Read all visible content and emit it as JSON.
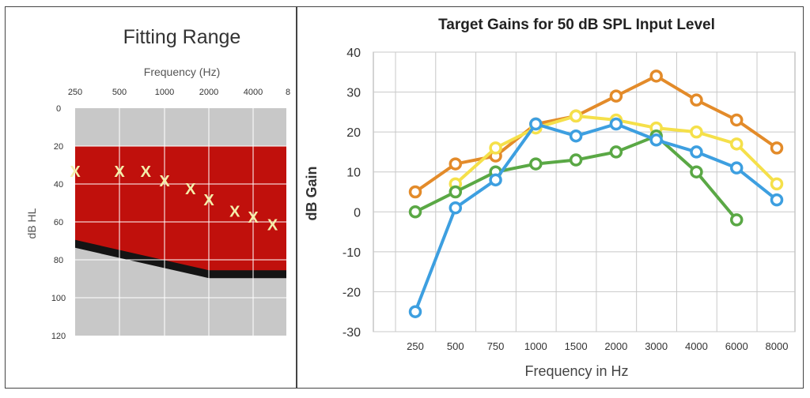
{
  "chart_data": [
    {
      "type": "scatter",
      "title": "Fitting Range",
      "xlabel": "Frequency (Hz)",
      "ylabel": "dB HL",
      "x_ticks": [
        "250",
        "500",
        "1000",
        "2000",
        "4000",
        "8"
      ],
      "y_ticks": [
        "0",
        "20",
        "40",
        "60",
        "80",
        "100",
        "120"
      ],
      "ylim": [
        0,
        120
      ],
      "y_inverted": true,
      "fitting_range_upper_db": 20,
      "fitting_range_lower_db": [
        {
          "freq": 250,
          "db": 72
        },
        {
          "freq": 2000,
          "db": 88
        },
        {
          "freq": 8000,
          "db": 88
        }
      ],
      "marker": "X",
      "points": [
        {
          "freq": 250,
          "db": 33
        },
        {
          "freq": 500,
          "db": 33
        },
        {
          "freq": 750,
          "db": 33
        },
        {
          "freq": 1000,
          "db": 38
        },
        {
          "freq": 1500,
          "db": 42
        },
        {
          "freq": 2000,
          "db": 48
        },
        {
          "freq": 3000,
          "db": 54
        },
        {
          "freq": 4000,
          "db": 57
        },
        {
          "freq": 6000,
          "db": 61
        }
      ],
      "colors": {
        "range": "#c0100c",
        "background": "#c8c8c8",
        "marker": "#f4eeaa",
        "curve": "#141414"
      }
    },
    {
      "type": "line",
      "title": "Target Gains for 50 dB SPL Input Level",
      "xlabel": "Frequency in Hz",
      "ylabel": "dB Gain",
      "categories": [
        "250",
        "500",
        "750",
        "1000",
        "1500",
        "2000",
        "3000",
        "4000",
        "6000",
        "8000"
      ],
      "y_ticks": [
        "40",
        "30",
        "20",
        "10",
        "0",
        "-10",
        "-20",
        "-30"
      ],
      "ylim": [
        -30,
        40
      ],
      "grid": true,
      "series": [
        {
          "color": "#e38b2a",
          "values": [
            5,
            12,
            14,
            22,
            24,
            29,
            34,
            28,
            23,
            16
          ]
        },
        {
          "color": "#f5e04a",
          "values": [
            null,
            7,
            16,
            21,
            24,
            23,
            21,
            20,
            17,
            7
          ]
        },
        {
          "color": "#5aa845",
          "values": [
            0,
            5,
            10,
            12,
            13,
            15,
            19,
            10,
            -2,
            null
          ]
        },
        {
          "color": "#3d9fe0",
          "values": [
            -25,
            1,
            8,
            22,
            19,
            22,
            18,
            15,
            11,
            3
          ]
        }
      ]
    }
  ]
}
